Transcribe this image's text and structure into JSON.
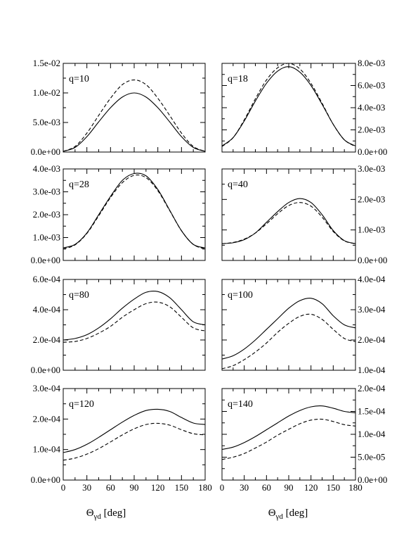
{
  "chart_data": [
    {
      "type": "line",
      "label": "q=10",
      "xlim": [
        0,
        180
      ],
      "ylim": [
        0,
        0.015
      ],
      "yticks": [
        "0.0e+00",
        "5.0e-03",
        "1.0e-02",
        "1.5e-02"
      ],
      "x": [
        0,
        15,
        30,
        45,
        60,
        75,
        90,
        105,
        120,
        135,
        150,
        165,
        180
      ],
      "series": [
        {
          "style": "solid",
          "values": [
            0.00012,
            0.00077,
            0.0026,
            0.0051,
            0.0075,
            0.0093,
            0.01,
            0.0093,
            0.0075,
            0.0051,
            0.0026,
            0.00077,
            0.00012
          ]
        },
        {
          "style": "dashed",
          "values": [
            0.00012,
            0.00094,
            0.0032,
            0.0062,
            0.0091,
            0.0114,
            0.0122,
            0.0114,
            0.0091,
            0.0062,
            0.0032,
            0.00094,
            0.00012
          ]
        }
      ]
    },
    {
      "type": "line",
      "label": "q=18",
      "xlim": [
        0,
        180
      ],
      "ylim": [
        0,
        0.008
      ],
      "yticks": [
        "0.0e+00",
        "2.0e-03",
        "4.0e-03",
        "6.0e-03",
        "8.0e-03"
      ],
      "x": [
        0,
        15,
        30,
        45,
        60,
        75,
        90,
        105,
        120,
        135,
        150,
        165,
        180
      ],
      "series": [
        {
          "style": "solid",
          "values": [
            0.00055,
            0.0013,
            0.0028,
            0.0046,
            0.0062,
            0.0073,
            0.0077,
            0.0072,
            0.006,
            0.0043,
            0.0025,
            0.0011,
            0.00055
          ]
        },
        {
          "style": "dashed",
          "values": [
            0.0005,
            0.0013,
            0.0029,
            0.0048,
            0.0065,
            0.0076,
            0.008,
            0.0075,
            0.0062,
            0.0044,
            0.0025,
            0.0011,
            0.0005
          ]
        }
      ]
    },
    {
      "type": "line",
      "label": "q=28",
      "xlim": [
        0,
        180
      ],
      "ylim": [
        0,
        0.004
      ],
      "yticks": [
        "0.0e+00",
        "1.0e-03",
        "2.0e-03",
        "3.0e-03",
        "4.0e-03"
      ],
      "x": [
        0,
        15,
        30,
        45,
        60,
        75,
        90,
        105,
        120,
        135,
        150,
        165,
        180
      ],
      "series": [
        {
          "style": "solid",
          "values": [
            0.00055,
            0.0007,
            0.0012,
            0.002,
            0.0028,
            0.0035,
            0.0038,
            0.0037,
            0.0031,
            0.0022,
            0.0013,
            0.0007,
            0.00055
          ]
        },
        {
          "style": "dashed",
          "values": [
            0.0005,
            0.00068,
            0.00118,
            0.00195,
            0.00275,
            0.0034,
            0.00372,
            0.00362,
            0.00305,
            0.00218,
            0.0013,
            0.0007,
            0.0005
          ]
        }
      ]
    },
    {
      "type": "line",
      "label": "q=40",
      "xlim": [
        0,
        180
      ],
      "ylim": [
        0,
        0.003
      ],
      "yticks": [
        "0.0e+00",
        "1.0e-03",
        "2.0e-03",
        "3.0e-03"
      ],
      "x": [
        0,
        15,
        30,
        45,
        60,
        75,
        90,
        105,
        120,
        135,
        150,
        165,
        180
      ],
      "series": [
        {
          "style": "solid",
          "values": [
            0.00055,
            0.00058,
            0.00068,
            0.0009,
            0.00125,
            0.0016,
            0.0019,
            0.00203,
            0.0019,
            0.0015,
            0.00098,
            0.00065,
            0.00055
          ]
        },
        {
          "style": "dashed",
          "values": [
            0.00055,
            0.00059,
            0.0007,
            0.0009,
            0.0012,
            0.00153,
            0.0018,
            0.0019,
            0.00178,
            0.00142,
            0.00095,
            0.00064,
            0.00055
          ]
        }
      ]
    },
    {
      "type": "line",
      "label": "q=80",
      "xlim": [
        0,
        180
      ],
      "ylim": [
        0,
        0.0006
      ],
      "yticks": [
        "0.0e+00",
        "2.0e-04",
        "4.0e-04",
        "6.0e-04"
      ],
      "x": [
        0,
        15,
        30,
        45,
        60,
        75,
        90,
        105,
        120,
        135,
        150,
        165,
        180
      ],
      "series": [
        {
          "style": "solid",
          "values": [
            0.0002,
            0.00021,
            0.000235,
            0.00028,
            0.00034,
            0.00041,
            0.00047,
            0.000515,
            0.00052,
            0.00048,
            0.0004,
            0.00032,
            0.0003
          ]
        },
        {
          "style": "dashed",
          "values": [
            0.000185,
            0.00019,
            0.00021,
            0.000245,
            0.00029,
            0.00035,
            0.0004,
            0.00044,
            0.00045,
            0.00042,
            0.00035,
            0.00028,
            0.00026
          ]
        }
      ]
    },
    {
      "type": "line",
      "label": "q=100",
      "xlim": [
        0,
        180
      ],
      "ylim": [
        0.0001,
        0.0004
      ],
      "yticks": [
        "1.0e-04",
        "2.0e-04",
        "3.0e-04",
        "4.0e-04"
      ],
      "x": [
        0,
        15,
        30,
        45,
        60,
        75,
        90,
        105,
        120,
        135,
        150,
        165,
        180
      ],
      "series": [
        {
          "style": "solid",
          "values": [
            0.000137,
            0.000148,
            0.00017,
            0.0002,
            0.000235,
            0.00027,
            0.000305,
            0.00033,
            0.000338,
            0.00032,
            0.00028,
            0.00025,
            0.00024
          ]
        },
        {
          "style": "dashed",
          "values": [
            0.000105,
            0.000115,
            0.000135,
            0.00016,
            0.00019,
            0.000225,
            0.000255,
            0.000278,
            0.000285,
            0.000268,
            0.000235,
            0.000205,
            0.000195
          ]
        }
      ]
    },
    {
      "type": "line",
      "label": "q=120",
      "xlim": [
        0,
        180
      ],
      "ylim": [
        0,
        0.0003
      ],
      "yticks": [
        "0.0e+00",
        "1.0e-04",
        "2.0e-04",
        "3.0e-04"
      ],
      "x": [
        0,
        15,
        30,
        45,
        60,
        75,
        90,
        105,
        120,
        135,
        150,
        165,
        180
      ],
      "series": [
        {
          "style": "solid",
          "values": [
            9e-05,
            0.0001,
            0.000117,
            0.00014,
            0.000165,
            0.00019,
            0.000212,
            0.000228,
            0.000232,
            0.000225,
            0.000205,
            0.000187,
            0.000182
          ]
        },
        {
          "style": "dashed",
          "values": [
            6.5e-05,
            7.2e-05,
            8.5e-05,
            0.000103,
            0.000125,
            0.000148,
            0.000168,
            0.000182,
            0.000186,
            0.00018,
            0.000165,
            0.000152,
            0.000148
          ]
        }
      ]
    },
    {
      "type": "line",
      "label": "q=140",
      "xlim": [
        0,
        180
      ],
      "ylim": [
        0,
        0.0002
      ],
      "yticks": [
        "0.0e+00",
        "5.0e-05",
        "1.0e-04",
        "1.5e-04",
        "2.0e-04"
      ],
      "x": [
        0,
        15,
        30,
        45,
        60,
        75,
        90,
        105,
        120,
        135,
        150,
        165,
        180
      ],
      "series": [
        {
          "style": "solid",
          "values": [
            6.7e-05,
            7.2e-05,
            8.2e-05,
            9.5e-05,
            0.00011,
            0.000125,
            0.00014,
            0.000152,
            0.00016,
            0.000162,
            0.000157,
            0.00015,
            0.000147
          ]
        },
        {
          "style": "dashed",
          "values": [
            4.5e-05,
            5e-05,
            5.8e-05,
            7e-05,
            8.3e-05,
            9.8e-05,
            0.000111,
            0.000123,
            0.000131,
            0.000133,
            0.000128,
            0.000121,
            0.000118
          ]
        }
      ]
    }
  ],
  "x_axis": {
    "ticks": [
      "0",
      "30",
      "60",
      "90",
      "120",
      "150",
      "180"
    ],
    "title_symbol": "Θ",
    "title_subscript": "γd",
    "title_unit": " [deg]"
  }
}
